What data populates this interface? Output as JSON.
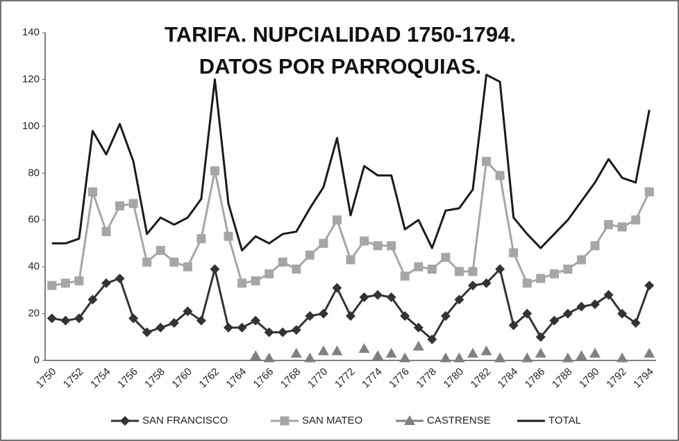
{
  "chart_data": {
    "type": "line",
    "title": [
      "TARIFA. NUPCIALIDAD 1750-1794.",
      "DATOS POR PARROQUIAS."
    ],
    "categories": [
      "1750",
      null,
      "1752",
      null,
      "1754",
      null,
      "1756",
      null,
      "1758",
      null,
      "1760",
      null,
      "1762",
      null,
      "1764",
      null,
      "1766",
      null,
      "1768",
      null,
      "1770",
      null,
      "1772",
      null,
      "1774",
      null,
      "1776",
      null,
      "1778",
      null,
      "1780",
      null,
      "1782",
      null,
      "1784",
      null,
      "1786",
      null,
      "1788",
      null,
      "1790",
      null,
      "1792",
      null,
      "1794"
    ],
    "series": [
      {
        "name": "SAN FRANCISCO",
        "color": "#333333",
        "marker": "diamond",
        "line": true,
        "values": [
          18,
          17,
          18,
          26,
          33,
          35,
          18,
          12,
          14,
          16,
          21,
          17,
          39,
          14,
          14,
          17,
          12,
          12,
          13,
          19,
          20,
          31,
          19,
          27,
          28,
          27,
          19,
          14,
          9,
          19,
          26,
          32,
          33,
          39,
          15,
          20,
          10,
          17,
          20,
          23,
          24,
          28,
          20,
          16,
          32
        ]
      },
      {
        "name": "SAN MATEO",
        "color": "#a6a6a6",
        "marker": "square",
        "line": true,
        "values": [
          32,
          33,
          34,
          72,
          55,
          66,
          67,
          42,
          47,
          42,
          40,
          52,
          81,
          53,
          33,
          34,
          37,
          42,
          39,
          45,
          50,
          60,
          43,
          51,
          49,
          49,
          36,
          40,
          39,
          44,
          38,
          38,
          85,
          79,
          46,
          33,
          35,
          37,
          39,
          43,
          49,
          58,
          57,
          60,
          72
        ]
      },
      {
        "name": "CASTRENSE",
        "color": "#808080",
        "marker": "triangle",
        "line": false,
        "values": [
          null,
          null,
          null,
          null,
          null,
          null,
          null,
          null,
          null,
          null,
          null,
          null,
          null,
          null,
          null,
          2,
          1,
          null,
          3,
          1,
          4,
          4,
          null,
          5,
          2,
          3,
          1,
          6,
          null,
          1,
          1,
          3,
          4,
          1,
          null,
          1,
          3,
          null,
          1,
          2,
          3,
          null,
          1,
          null,
          3
        ]
      },
      {
        "name": "TOTAL",
        "color": "#1a1a1a",
        "marker": "none",
        "line": true,
        "values": [
          50,
          50,
          52,
          98,
          88,
          101,
          85,
          54,
          61,
          58,
          61,
          69,
          120,
          67,
          47,
          53,
          50,
          54,
          55,
          65,
          74,
          95,
          62,
          83,
          79,
          79,
          56,
          60,
          48,
          64,
          65,
          73,
          122,
          119,
          61,
          54,
          48,
          54,
          60,
          68,
          76,
          86,
          78,
          76,
          107
        ]
      }
    ],
    "ylim": [
      0,
      140
    ],
    "yticks": [
      0,
      20,
      40,
      60,
      80,
      100,
      120,
      140
    ],
    "grid": false,
    "legend": "bottom"
  }
}
